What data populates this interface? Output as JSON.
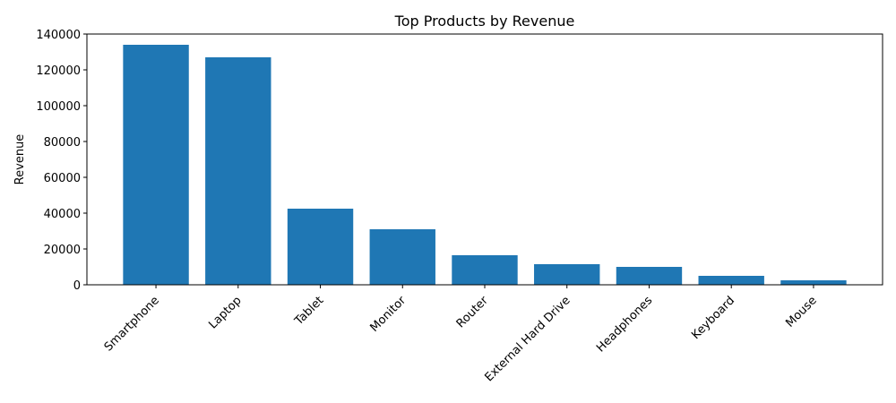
{
  "chart_data": {
    "type": "bar",
    "title": "Top Products by Revenue",
    "y_label": "Revenue",
    "categories": [
      "Smartphone",
      "Laptop",
      "Tablet",
      "Monitor",
      "Router",
      "External Hard Drive",
      "Headphones",
      "Keyboard",
      "Mouse"
    ],
    "values": [
      134000,
      127000,
      42500,
      31000,
      16500,
      11500,
      10000,
      5000,
      2500
    ],
    "color": "#1f77b4",
    "ylim": [
      0,
      140000
    ],
    "yticks": [
      0,
      20000,
      40000,
      60000,
      80000,
      100000,
      120000,
      140000
    ],
    "grid": false
  }
}
